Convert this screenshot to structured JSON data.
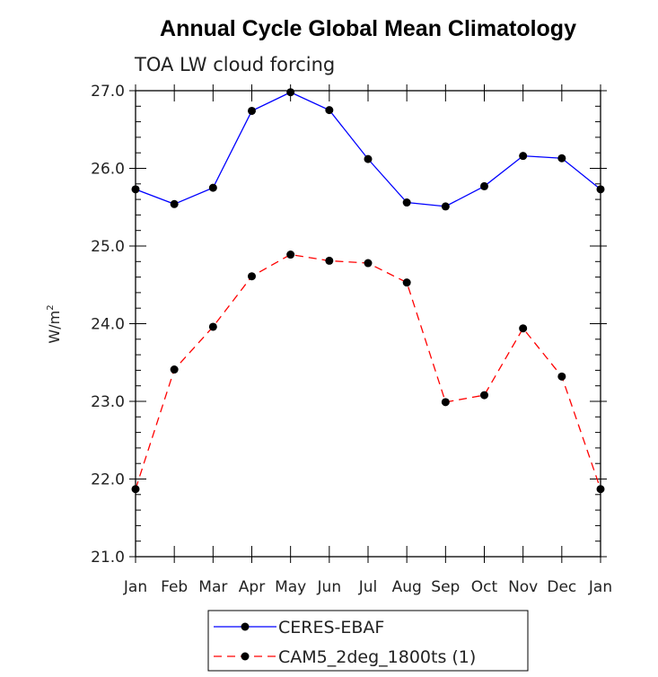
{
  "chart_data": {
    "type": "line",
    "title": "Annual Cycle Global Mean Climatology",
    "subtitle": "TOA LW cloud forcing",
    "ylabel": "W/m",
    "ylabel_superscript": "2",
    "xlabel": "",
    "categories": [
      "Jan",
      "Feb",
      "Mar",
      "Apr",
      "May",
      "Jun",
      "Jul",
      "Aug",
      "Sep",
      "Oct",
      "Nov",
      "Dec",
      "Jan"
    ],
    "ylim": [
      21.0,
      27.0
    ],
    "yticks": [
      "21.0",
      "22.0",
      "23.0",
      "24.0",
      "25.0",
      "26.0",
      "27.0"
    ],
    "series": [
      {
        "name": "CERES-EBAF",
        "color": "#0000ff",
        "dash": "solid",
        "values": [
          25.73,
          25.54,
          25.75,
          26.74,
          26.98,
          26.75,
          26.12,
          25.56,
          25.51,
          25.77,
          26.16,
          26.13,
          25.73
        ]
      },
      {
        "name": "CAM5_2deg_1800ts (1)",
        "color": "#ff0000",
        "dash": "dashed",
        "values": [
          21.87,
          23.41,
          23.96,
          24.61,
          24.89,
          24.81,
          24.78,
          24.53,
          22.99,
          23.08,
          23.94,
          23.32,
          21.87
        ]
      }
    ],
    "legend": "bottom"
  }
}
